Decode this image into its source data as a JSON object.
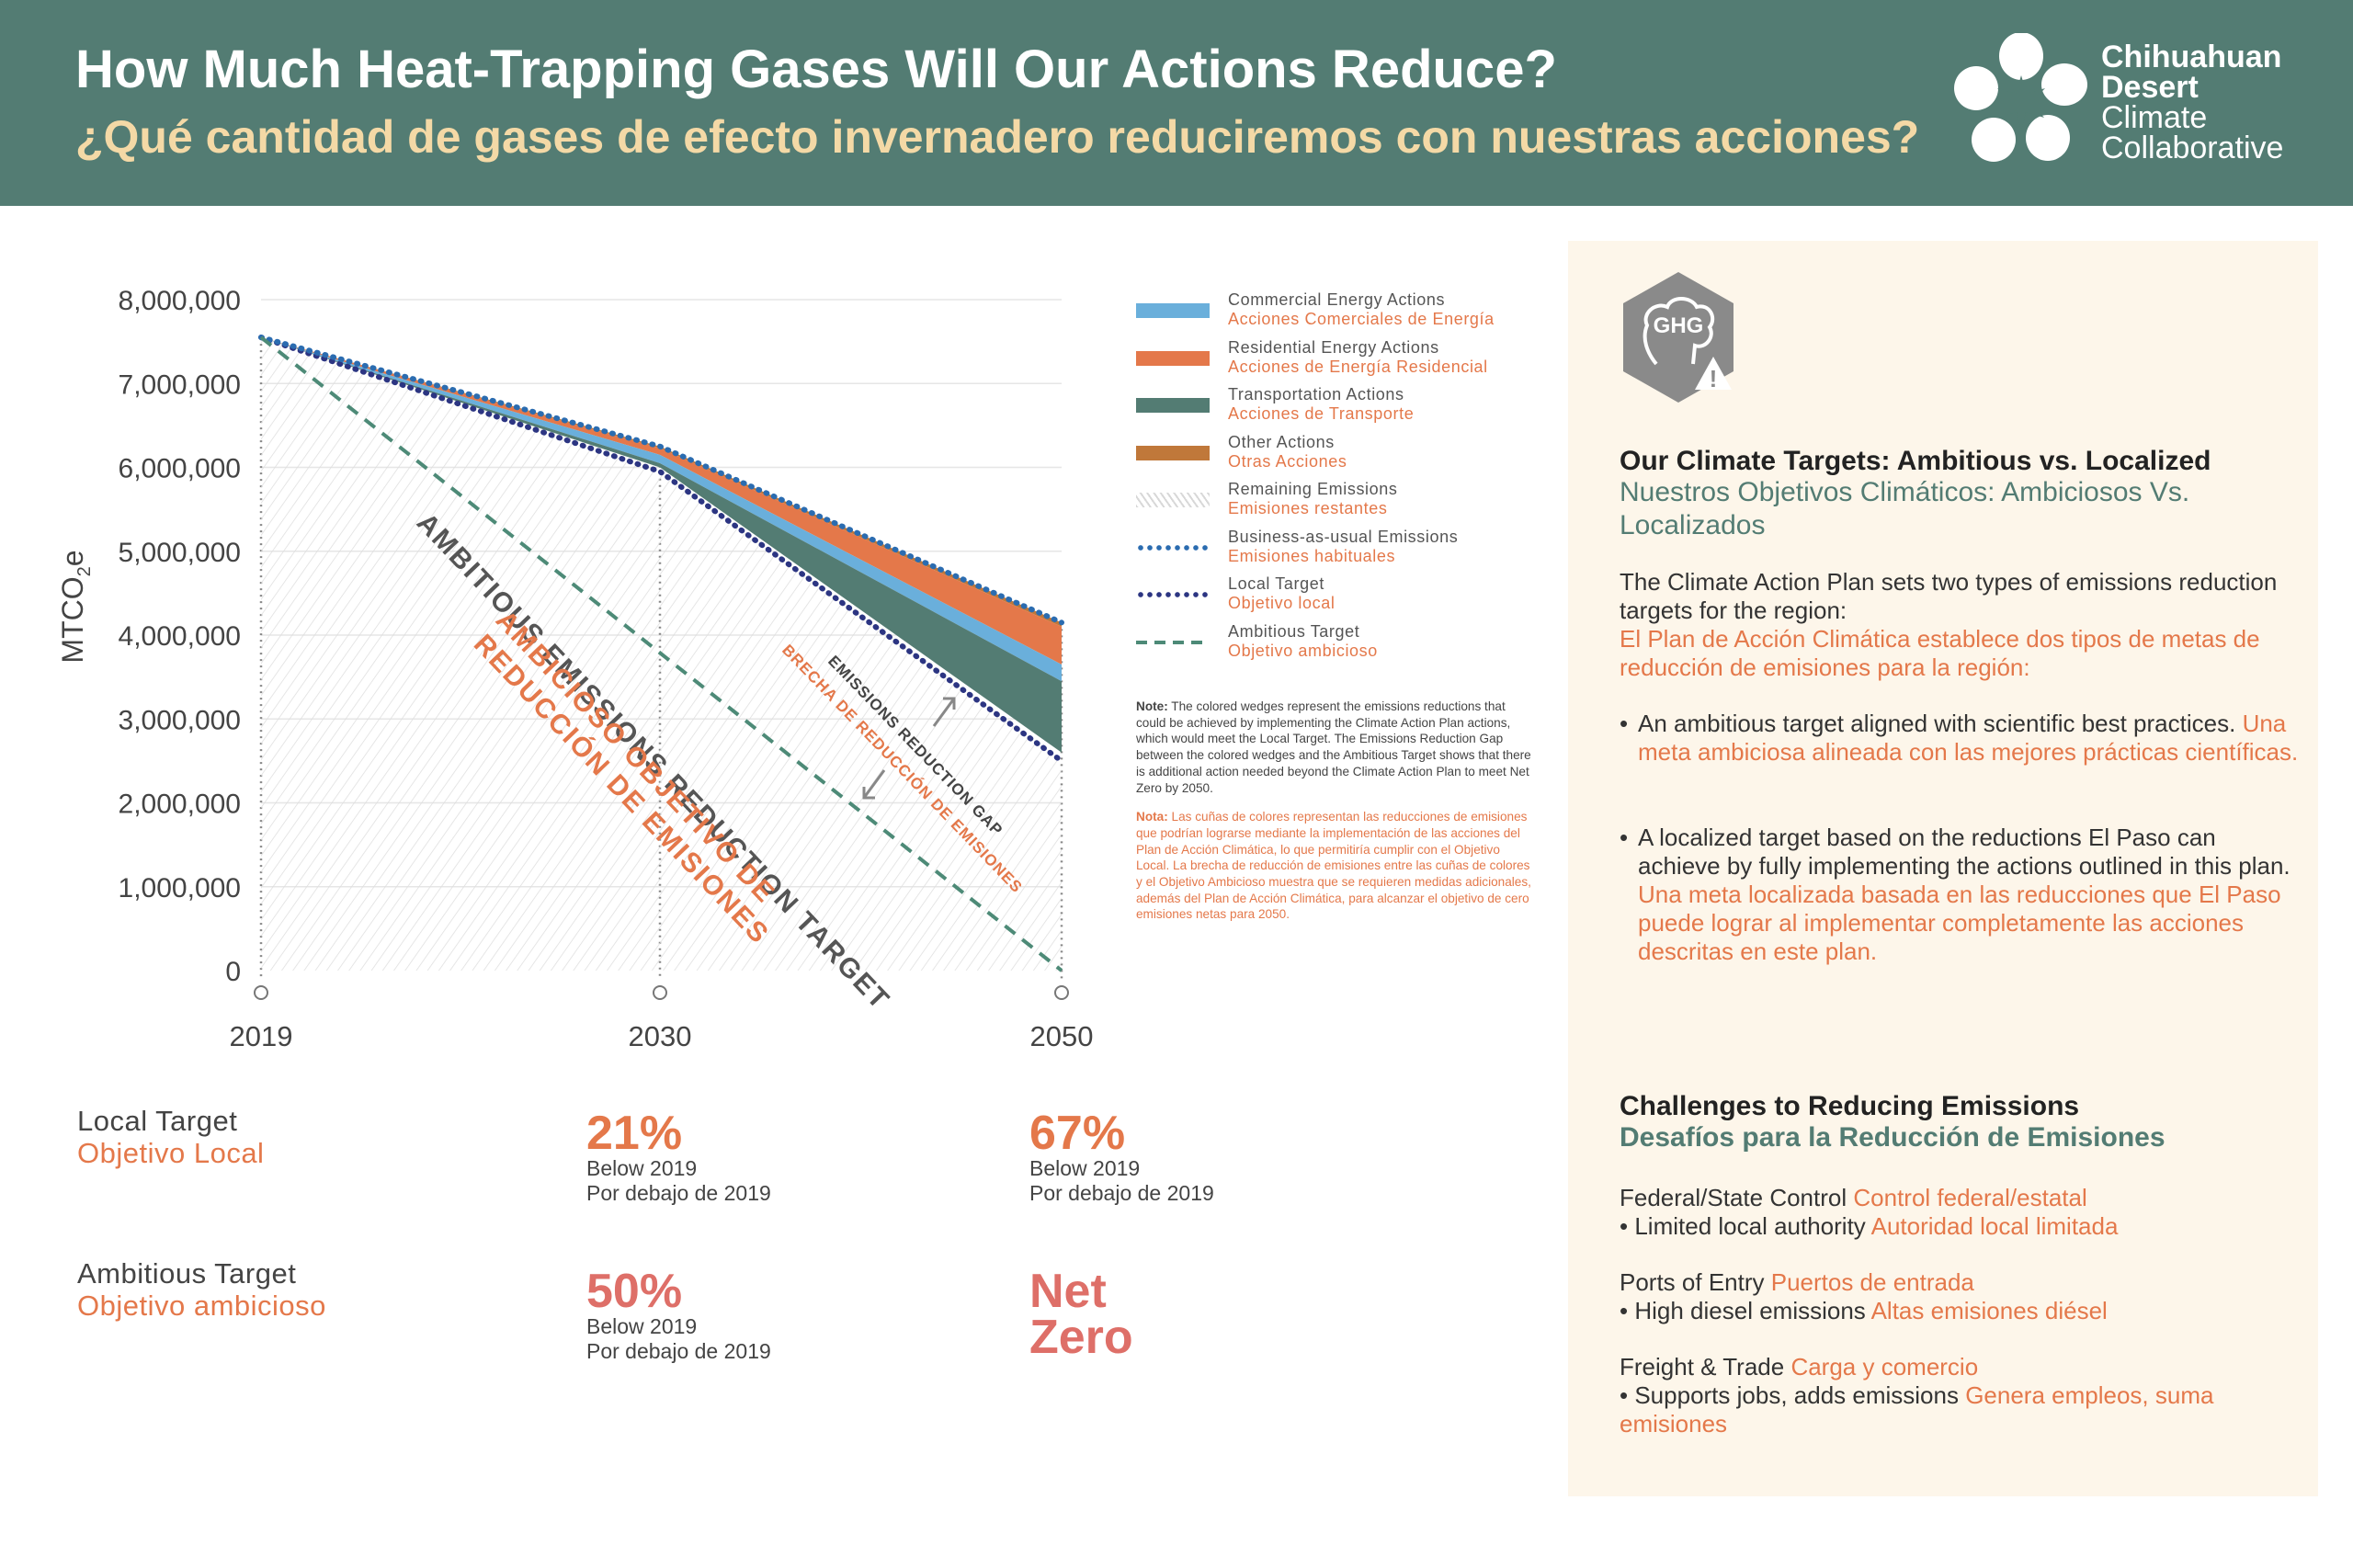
{
  "header": {
    "title_en": "How Much Heat-Trapping Gases Will Our Actions Reduce?",
    "title_es": "¿Qué cantidad de gases de efecto invernadero reduciremos con nuestras acciones?",
    "logo_line1": "Chihuahuan",
    "logo_line2": "Desert",
    "logo_line3": "Climate",
    "logo_line4": "Collaborative"
  },
  "colors": {
    "header_bg": "#537c73",
    "commercial": "#6aafdb",
    "residential": "#e4784a",
    "transportation": "#537c73",
    "other": "#c0783a",
    "bau_line": "#2b6cb0",
    "local_target": "#2c3582",
    "ambitious_target": "#4d8a77",
    "orange_text": "#e4784a",
    "panel_bg": "#fdf6ea"
  },
  "chart_data": {
    "type": "area",
    "x": [
      "2019",
      "2030",
      "2050"
    ],
    "ylabel": "MTCO2e",
    "ylim": [
      0,
      8000000
    ],
    "yticks": [
      "8,000,000",
      "7,000,000",
      "6,000,000",
      "5,000,000",
      "4,000,000",
      "3,000,000",
      "2,000,000",
      "1,000,000",
      "0"
    ],
    "ytick_values": [
      8000000,
      7000000,
      6000000,
      5000000,
      4000000,
      3000000,
      2000000,
      1000000,
      0
    ],
    "grid": true,
    "legend_position": "right",
    "series": [
      {
        "name": "Business-as-usual Emissions",
        "values": [
          7550000,
          6250000,
          4150000
        ]
      },
      {
        "name": "Other Actions",
        "values": [
          7550000,
          6230000,
          4100000
        ]
      },
      {
        "name": "Residential Energy Actions",
        "values": [
          7550000,
          6150000,
          3650000
        ]
      },
      {
        "name": "Commercial Energy Actions",
        "values": [
          7550000,
          6050000,
          3450000
        ]
      },
      {
        "name": "Transportation Actions",
        "values": [
          7550000,
          6000000,
          2600000
        ]
      },
      {
        "name": "Local Target",
        "values": [
          7550000,
          5950000,
          2500000
        ]
      },
      {
        "name": "Ambitious Target",
        "values": [
          7550000,
          null,
          0
        ]
      }
    ],
    "annotations": {
      "ambitious_en": "AMBITIOUS EMISSIONS REDUCTION TARGET",
      "ambitious_es_1": "AMBICIOSO OBJETIVO DE",
      "ambitious_es_2": "REDUCCIÓN DE EMISIONES",
      "gap_en": "EMISSIONS REDUCTION GAP",
      "gap_es": "BRECHA DE REDUCCIÓN DE EMISIONES"
    }
  },
  "legend": [
    {
      "en": "Commercial Energy Actions",
      "es": "Acciones Comerciales de Energía",
      "kind": "solid",
      "color": "#6aafdb"
    },
    {
      "en": "Residential Energy Actions",
      "es": "Acciones de Energía Residencial",
      "kind": "solid",
      "color": "#e4784a"
    },
    {
      "en": "Transportation Actions",
      "es": "Acciones de Transporte",
      "kind": "solid",
      "color": "#537c73"
    },
    {
      "en": "Other Actions",
      "es": "Otras Acciones",
      "kind": "solid",
      "color": "#c0783a"
    },
    {
      "en": "Remaining Emissions",
      "es": "Emisiones restantes",
      "kind": "hatch",
      "color": "#d8d8d8"
    },
    {
      "en": "Business-as-usual Emissions",
      "es": "Emisiones habituales",
      "kind": "dots",
      "color": "#2b6cb0"
    },
    {
      "en": "Local Target",
      "es": "Objetivo local",
      "kind": "dots",
      "color": "#2c3582"
    },
    {
      "en": "Ambitious Target",
      "es": "Objetivo ambicioso",
      "kind": "dash",
      "color": "#4d8a77"
    }
  ],
  "note": {
    "label_en": "Note:",
    "text_en": "The colored wedges represent the emissions reductions that could be achieved by implementing the Climate Action Plan actions, which would meet the Local Target. The Emissions Reduction Gap between the colored wedges and the Ambitious Target shows that there is additional action needed beyond the Climate Action Plan to meet Net Zero by 2050.",
    "label_es": "Nota:",
    "text_es": "Las cuñas de colores representan las reducciones de emisiones que podrían lograrse mediante la implementación de las acciones del Plan de Acción Climática, lo que permitiría cumplir con el Objetivo Local. La brecha de reducción de emisiones entre las cuñas de colores y el Objetivo Ambicioso muestra que se requieren medidas adicionales, además del Plan de Acción Climática, para alcanzar el objetivo de cero emisiones netas para 2050."
  },
  "targets": {
    "local": {
      "label_en": "Local Target",
      "label_es": "Objetivo Local",
      "v2030": "21%",
      "v2050": "67%",
      "sub_en": "Below 2019",
      "sub_es": "Por debajo de 2019"
    },
    "ambitious": {
      "label_en": "Ambitious Target",
      "label_es": "Objetivo ambicioso",
      "v2030": "50%",
      "v2050_line1": "Net",
      "v2050_line2": "Zero",
      "sub_en": "Below 2019",
      "sub_es": "Por debajo de 2019"
    }
  },
  "panel": {
    "ghg_icon_label": "GHG",
    "h1_en": "Our Climate Targets: Ambitious vs. Localized",
    "h1_es": "Nuestros Objetivos Climáticos: Ambiciosos Vs. Localizados",
    "intro_en": "The Climate Action Plan sets two types of emissions reduction targets for the region:",
    "intro_es": "El Plan de Acción Climática establece dos tipos de metas de reducción de emisiones para la región:",
    "b1_en": "An ambitious target aligned with scientific best practices.",
    "b1_es": "Una meta ambiciosa alineada con las mejores prácticas científicas.",
    "b2_en": "A localized target based on the reductions El Paso can achieve by fully implementing the actions outlined in this plan.",
    "b2_es": "Una meta localizada basada en las reducciones que El Paso puede lograr al implementar completamente las acciones descritas en este plan.",
    "h2_en": "Challenges to Reducing Emissions",
    "h2_es": "Desafíos para la Reducción de Emisiones",
    "c1_title_en": "Federal/State Control",
    "c1_title_es": "Control federal/estatal",
    "c1_item_en": "Limited local authority",
    "c1_item_es": "Autoridad local limitada",
    "c2_title_en": "Ports of Entry",
    "c2_title_es": "Puertos de entrada",
    "c2_item_en": "High diesel emissions",
    "c2_item_es": "Altas emisiones diésel",
    "c3_title_en": "Freight & Trade",
    "c3_title_es": "Carga y comercio",
    "c3_item_en": "Supports jobs, adds emissions",
    "c3_item_es": "Genera empleos, suma emisiones",
    "bullet": "•"
  }
}
